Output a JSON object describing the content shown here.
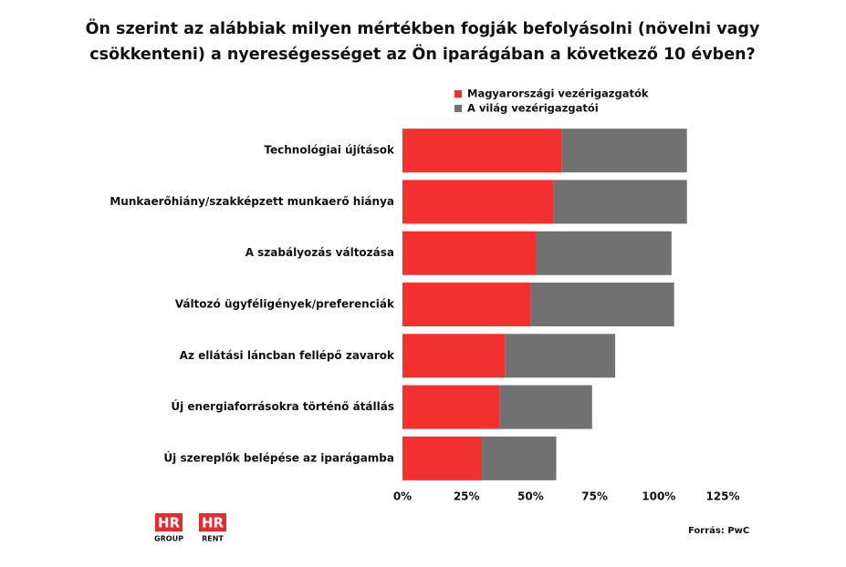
{
  "chart_data": {
    "type": "stacked-barh",
    "title": "Ön szerint az alábbiak milyen mértékben fogják befolyásolni (növelni vagy",
    "subtitle": "csökkenteni) a nyereségességet az Ön iparágában a következő 10 évben?",
    "categories": [
      "Technológiai újítások",
      "Munkaerőhiány/szakképzett munkaerő hiánya",
      "A szabályozás változása",
      "Változó ügyféligények/preferenciák",
      "Az ellátási láncban fellépő zavarok",
      "Új energiaforrásokra történő átállás",
      "Új szereplők belépése az iparágamba"
    ],
    "series": [
      {
        "name": "Magyarországi vezérigazgatók",
        "color": "#f23030",
        "values": [
          62,
          59,
          52,
          50,
          40,
          38,
          31
        ]
      },
      {
        "name": "A világ vezérigazgatói",
        "color": "#717171",
        "values": [
          49,
          52,
          53,
          56,
          43,
          36,
          29
        ]
      }
    ],
    "xlim": [
      0,
      125
    ],
    "xticks": [
      {
        "value": 0,
        "label": "0%"
      },
      {
        "value": 25,
        "label": "25%"
      },
      {
        "value": 50,
        "label": "50%"
      },
      {
        "value": 75,
        "label": "75%"
      },
      {
        "value": 100,
        "label": "100%"
      },
      {
        "value": 125,
        "label": "125%"
      }
    ],
    "source": "Forrás: PwC"
  },
  "logos": [
    {
      "top": "HR",
      "bottom": "GROUP"
    },
    {
      "top": "HR",
      "bottom": "RENT"
    }
  ]
}
